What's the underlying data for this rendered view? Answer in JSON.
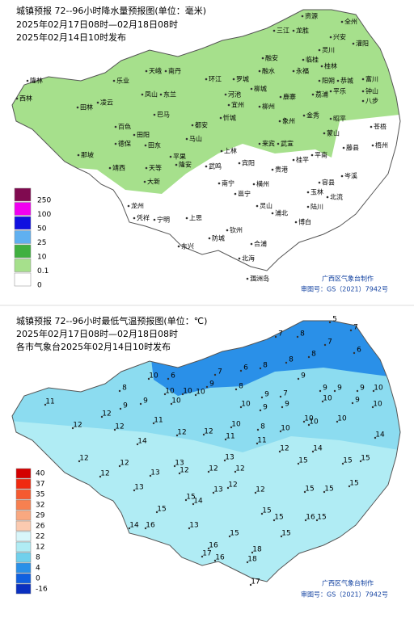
{
  "maps": [
    {
      "title": "城镇预报 72--96小时降水量预报图(单位：毫米)",
      "period": "2025年02月17日08时—02月18日08时",
      "issued": "2025年02月14日10时发布",
      "legend": [
        {
          "label": "250",
          "color": "#800a50"
        },
        {
          "label": "100",
          "color": "#f000f0"
        },
        {
          "label": "50",
          "color": "#1010e0"
        },
        {
          "label": "25",
          "color": "#60b0f0"
        },
        {
          "label": "10",
          "color": "#40b040"
        },
        {
          "label": "0.1",
          "color": "#a6e08c"
        },
        {
          "label": "0",
          "color": "#ffffff"
        }
      ],
      "credit": "广西区气象台制作",
      "approval": "审图号：GS（2021）7942号",
      "places": [
        "资源",
        "全州",
        "三江",
        "龙胜",
        "兴安",
        "灌阳",
        "灵川",
        "融安",
        "临桂",
        "桂林",
        "南丹",
        "天峨",
        "融水",
        "永福",
        "隆林",
        "乐业",
        "环江",
        "罗城",
        "阳朔",
        "恭城",
        "富川",
        "西林",
        "凤山",
        "东兰",
        "河池",
        "柳城",
        "荔浦",
        "平乐",
        "钟山",
        "田林",
        "凌云",
        "宜州",
        "鹿寨",
        "柳州",
        "巴马",
        "金秀",
        "昭平",
        "八步",
        "都安",
        "忻城",
        "象州",
        "百色",
        "苍梧",
        "田阳",
        "蒙山",
        "马山",
        "来宾",
        "德保",
        "田东",
        "武宣",
        "藤县",
        "梧州",
        "上林",
        "平南",
        "那坡",
        "平果",
        "宾阳",
        "靖西",
        "天等",
        "隆安",
        "武鸣",
        "贵港",
        "岑溪",
        "大新",
        "南宁",
        "横州",
        "邕宁",
        "容县",
        "玉林",
        "北流",
        "龙州",
        "灵山",
        "浦北",
        "陆川",
        "凭祥",
        "宁明",
        "上思",
        "博白",
        "钦州",
        "防城",
        "东兴",
        "合浦",
        "北海",
        "涠洲岛",
        "桂平"
      ]
    },
    {
      "title": "城镇预报 72--96小时最低气温预报图(单位：℃)",
      "period": "2025年02月17日08时—02月18日08时",
      "issued": "各市气象台2025年02月14日10时发布",
      "legend": [
        {
          "label": "40",
          "color": "#d40000"
        },
        {
          "label": "37",
          "color": "#f02a10"
        },
        {
          "label": "35",
          "color": "#f55a30"
        },
        {
          "label": "32",
          "color": "#f78050"
        },
        {
          "label": "29",
          "color": "#f9a880"
        },
        {
          "label": "26",
          "color": "#fbcab0"
        },
        {
          "label": "22",
          "color": "#d8f6fa"
        },
        {
          "label": "12",
          "color": "#b0ecf4"
        },
        {
          "label": "8",
          "color": "#70d0ec"
        },
        {
          "label": "4",
          "color": "#2a90e8"
        },
        {
          "label": "0",
          "color": "#1060e0"
        },
        {
          "label": "-16",
          "color": "#0a30c0"
        }
      ],
      "credit": "广西区气象台制作",
      "approval": "审图号：GS（2021）7942号",
      "temperatures": [
        7,
        8,
        5,
        7,
        7,
        6,
        8,
        8,
        8,
        6,
        7,
        6,
        10,
        9,
        10,
        8,
        10,
        10,
        8,
        11,
        9,
        10,
        9,
        7,
        9,
        9,
        9,
        9,
        10,
        9,
        10,
        10,
        9,
        9,
        10,
        10,
        8,
        10,
        10,
        10,
        10,
        12,
        9,
        11,
        12,
        12,
        12,
        12,
        11,
        11,
        12,
        14,
        15,
        14,
        14,
        12,
        13,
        12,
        12,
        12,
        12,
        13,
        12,
        15,
        15,
        13,
        13,
        14,
        12,
        13,
        12,
        15,
        15,
        15,
        15,
        15,
        15,
        15,
        16,
        15,
        14,
        16,
        13,
        15,
        15,
        16,
        17,
        16,
        18,
        18,
        17
      ]
    }
  ]
}
